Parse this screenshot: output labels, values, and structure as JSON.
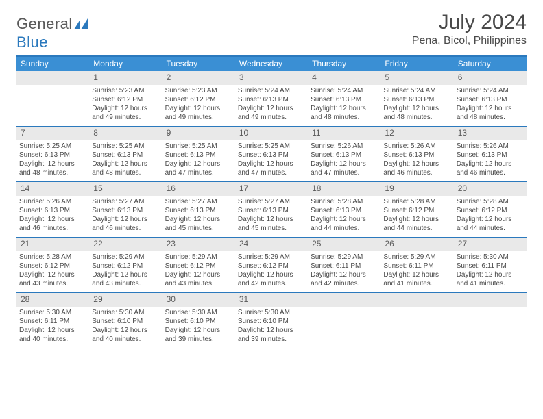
{
  "brand": {
    "word1": "General",
    "word2": "Blue"
  },
  "title": "July 2024",
  "location": "Pena, Bicol, Philippines",
  "colors": {
    "header_bar": "#3a8fd4",
    "rule": "#2b79bd",
    "daynum_bg": "#e9e9e9",
    "text": "#4a4a4a",
    "brand_gray": "#5a5a5a",
    "brand_blue": "#2b79bd",
    "background": "#ffffff"
  },
  "typography": {
    "title_fontsize": 30,
    "location_fontsize": 16,
    "dow_fontsize": 12,
    "daynum_fontsize": 12,
    "cell_fontsize": 10,
    "logo_fontsize": 22
  },
  "day_names": [
    "Sunday",
    "Monday",
    "Tuesday",
    "Wednesday",
    "Thursday",
    "Friday",
    "Saturday"
  ],
  "weeks": [
    [
      {
        "n": "",
        "sunrise": "",
        "sunset": "",
        "daylight": ""
      },
      {
        "n": "1",
        "sunrise": "5:23 AM",
        "sunset": "6:12 PM",
        "daylight": "12 hours and 49 minutes."
      },
      {
        "n": "2",
        "sunrise": "5:23 AM",
        "sunset": "6:12 PM",
        "daylight": "12 hours and 49 minutes."
      },
      {
        "n": "3",
        "sunrise": "5:24 AM",
        "sunset": "6:13 PM",
        "daylight": "12 hours and 49 minutes."
      },
      {
        "n": "4",
        "sunrise": "5:24 AM",
        "sunset": "6:13 PM",
        "daylight": "12 hours and 48 minutes."
      },
      {
        "n": "5",
        "sunrise": "5:24 AM",
        "sunset": "6:13 PM",
        "daylight": "12 hours and 48 minutes."
      },
      {
        "n": "6",
        "sunrise": "5:24 AM",
        "sunset": "6:13 PM",
        "daylight": "12 hours and 48 minutes."
      }
    ],
    [
      {
        "n": "7",
        "sunrise": "5:25 AM",
        "sunset": "6:13 PM",
        "daylight": "12 hours and 48 minutes."
      },
      {
        "n": "8",
        "sunrise": "5:25 AM",
        "sunset": "6:13 PM",
        "daylight": "12 hours and 48 minutes."
      },
      {
        "n": "9",
        "sunrise": "5:25 AM",
        "sunset": "6:13 PM",
        "daylight": "12 hours and 47 minutes."
      },
      {
        "n": "10",
        "sunrise": "5:25 AM",
        "sunset": "6:13 PM",
        "daylight": "12 hours and 47 minutes."
      },
      {
        "n": "11",
        "sunrise": "5:26 AM",
        "sunset": "6:13 PM",
        "daylight": "12 hours and 47 minutes."
      },
      {
        "n": "12",
        "sunrise": "5:26 AM",
        "sunset": "6:13 PM",
        "daylight": "12 hours and 46 minutes."
      },
      {
        "n": "13",
        "sunrise": "5:26 AM",
        "sunset": "6:13 PM",
        "daylight": "12 hours and 46 minutes."
      }
    ],
    [
      {
        "n": "14",
        "sunrise": "5:26 AM",
        "sunset": "6:13 PM",
        "daylight": "12 hours and 46 minutes."
      },
      {
        "n": "15",
        "sunrise": "5:27 AM",
        "sunset": "6:13 PM",
        "daylight": "12 hours and 46 minutes."
      },
      {
        "n": "16",
        "sunrise": "5:27 AM",
        "sunset": "6:13 PM",
        "daylight": "12 hours and 45 minutes."
      },
      {
        "n": "17",
        "sunrise": "5:27 AM",
        "sunset": "6:13 PM",
        "daylight": "12 hours and 45 minutes."
      },
      {
        "n": "18",
        "sunrise": "5:28 AM",
        "sunset": "6:13 PM",
        "daylight": "12 hours and 44 minutes."
      },
      {
        "n": "19",
        "sunrise": "5:28 AM",
        "sunset": "6:12 PM",
        "daylight": "12 hours and 44 minutes."
      },
      {
        "n": "20",
        "sunrise": "5:28 AM",
        "sunset": "6:12 PM",
        "daylight": "12 hours and 44 minutes."
      }
    ],
    [
      {
        "n": "21",
        "sunrise": "5:28 AM",
        "sunset": "6:12 PM",
        "daylight": "12 hours and 43 minutes."
      },
      {
        "n": "22",
        "sunrise": "5:29 AM",
        "sunset": "6:12 PM",
        "daylight": "12 hours and 43 minutes."
      },
      {
        "n": "23",
        "sunrise": "5:29 AM",
        "sunset": "6:12 PM",
        "daylight": "12 hours and 43 minutes."
      },
      {
        "n": "24",
        "sunrise": "5:29 AM",
        "sunset": "6:12 PM",
        "daylight": "12 hours and 42 minutes."
      },
      {
        "n": "25",
        "sunrise": "5:29 AM",
        "sunset": "6:11 PM",
        "daylight": "12 hours and 42 minutes."
      },
      {
        "n": "26",
        "sunrise": "5:29 AM",
        "sunset": "6:11 PM",
        "daylight": "12 hours and 41 minutes."
      },
      {
        "n": "27",
        "sunrise": "5:30 AM",
        "sunset": "6:11 PM",
        "daylight": "12 hours and 41 minutes."
      }
    ],
    [
      {
        "n": "28",
        "sunrise": "5:30 AM",
        "sunset": "6:11 PM",
        "daylight": "12 hours and 40 minutes."
      },
      {
        "n": "29",
        "sunrise": "5:30 AM",
        "sunset": "6:10 PM",
        "daylight": "12 hours and 40 minutes."
      },
      {
        "n": "30",
        "sunrise": "5:30 AM",
        "sunset": "6:10 PM",
        "daylight": "12 hours and 39 minutes."
      },
      {
        "n": "31",
        "sunrise": "5:30 AM",
        "sunset": "6:10 PM",
        "daylight": "12 hours and 39 minutes."
      },
      {
        "n": "",
        "sunrise": "",
        "sunset": "",
        "daylight": ""
      },
      {
        "n": "",
        "sunrise": "",
        "sunset": "",
        "daylight": ""
      },
      {
        "n": "",
        "sunrise": "",
        "sunset": "",
        "daylight": ""
      }
    ]
  ],
  "labels": {
    "sunrise": "Sunrise:",
    "sunset": "Sunset:",
    "daylight": "Daylight:"
  }
}
